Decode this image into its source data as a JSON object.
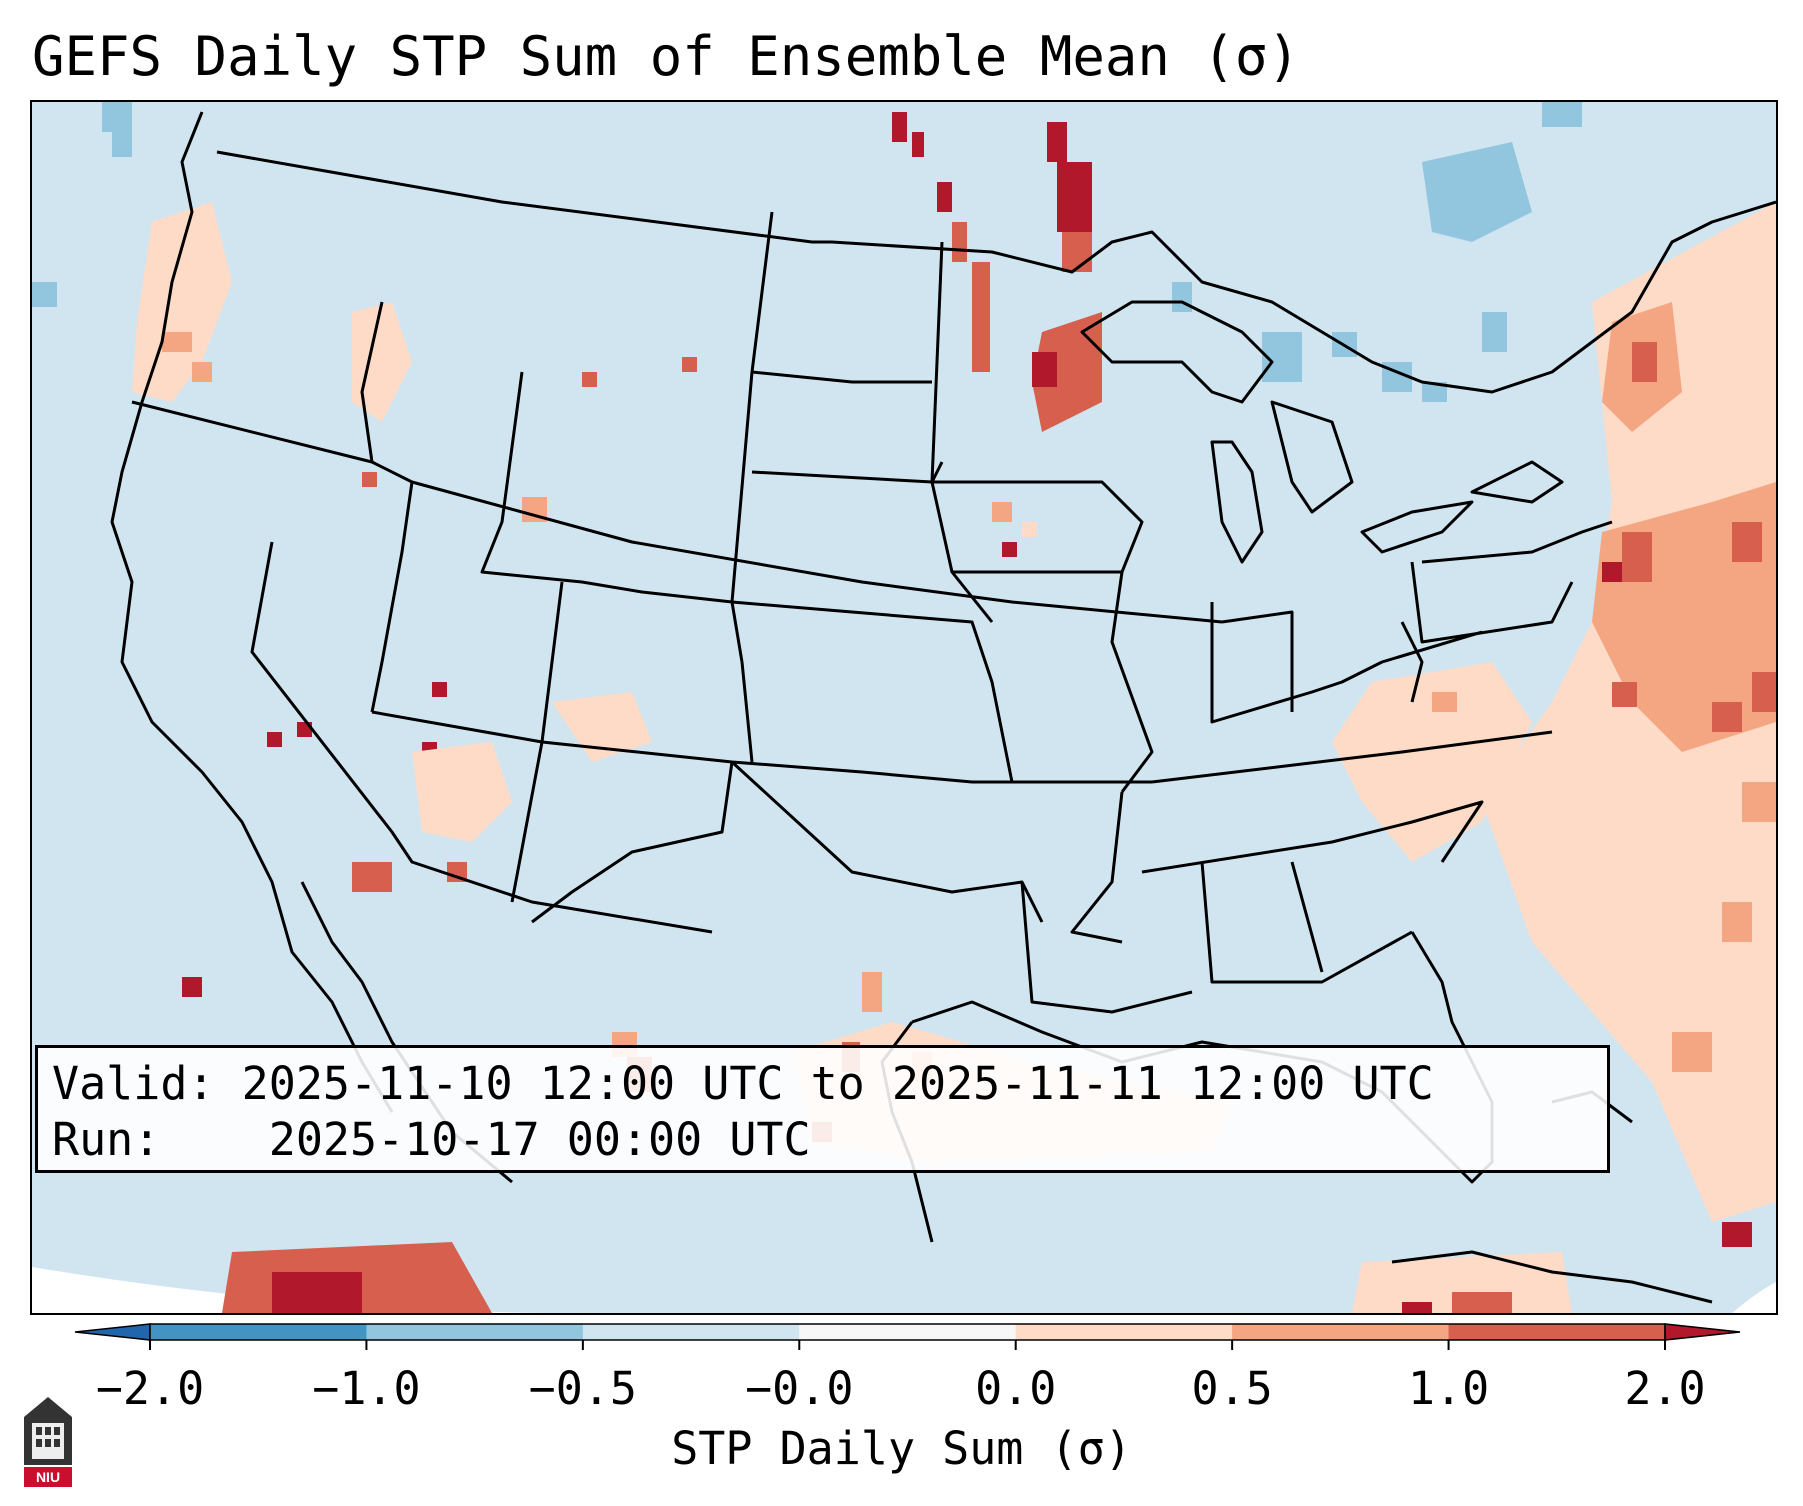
{
  "title": "GEFS Daily STP Sum of Ensemble Mean (σ)",
  "info": {
    "valid_label": "Valid:",
    "valid_value": "2025-11-10 12:00 UTC to 2025-11-11 12:00 UTC",
    "run_label": "Run:",
    "run_value": "2025-10-17 00:00 UTC"
  },
  "colorbar": {
    "label": "STP Daily Sum (σ)",
    "ticks": [
      "−2.0",
      "−1.0",
      "−0.5",
      "−0.0",
      "0.0",
      "0.5",
      "1.0",
      "2.0"
    ],
    "bin_colors": [
      "#2166ac",
      "#4393c3",
      "#92c5de",
      "#d1e5f0",
      "#f7f7f7",
      "#fddbc7",
      "#f4a582",
      "#d6604d",
      "#b2182b"
    ]
  },
  "logo": {
    "text": "NIU",
    "color": "#c8102e",
    "icon": "university-building-icon"
  },
  "map_colors": {
    "background": "#d1e5f0",
    "water_boundary": "#000000"
  }
}
